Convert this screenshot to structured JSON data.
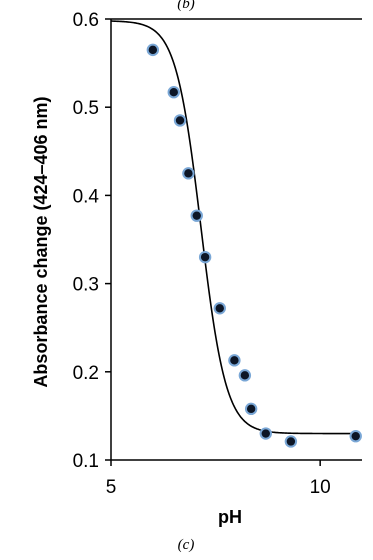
{
  "panel_top_label": "(b)",
  "panel_label": "(c)",
  "chart_data": {
    "type": "scatter",
    "title": "",
    "xlabel": "pH",
    "ylabel": "Absorbance change (424–406 nm)",
    "xlim": [
      5,
      11
    ],
    "ylim": [
      0.1,
      0.6
    ],
    "xticks": [
      5,
      10
    ],
    "xtick_labels": [
      "5",
      "10"
    ],
    "yticks": [
      0.1,
      0.2,
      0.3,
      0.4,
      0.5,
      0.6
    ],
    "ytick_labels": [
      "0.1",
      "0.2",
      "0.3",
      "0.4",
      "0.5",
      "0.6"
    ],
    "grid": false,
    "legend": "none",
    "marker_color": "#0d1626",
    "marker_edge_color": "#7aa7d6",
    "points": [
      {
        "x": 6.0,
        "y": 0.565
      },
      {
        "x": 6.5,
        "y": 0.517
      },
      {
        "x": 6.65,
        "y": 0.485
      },
      {
        "x": 6.85,
        "y": 0.425
      },
      {
        "x": 7.05,
        "y": 0.377
      },
      {
        "x": 7.25,
        "y": 0.33
      },
      {
        "x": 7.6,
        "y": 0.272
      },
      {
        "x": 7.95,
        "y": 0.213
      },
      {
        "x": 8.2,
        "y": 0.196
      },
      {
        "x": 8.35,
        "y": 0.158
      },
      {
        "x": 8.7,
        "y": 0.13
      },
      {
        "x": 9.3,
        "y": 0.121
      },
      {
        "x": 10.85,
        "y": 0.127
      }
    ],
    "fit_curve": {
      "type": "sigmoid",
      "top": 0.598,
      "bottom": 0.13,
      "pKa": 7.15,
      "slope": 1.45,
      "x_range": [
        5,
        10.85
      ],
      "color": "#000000"
    }
  }
}
